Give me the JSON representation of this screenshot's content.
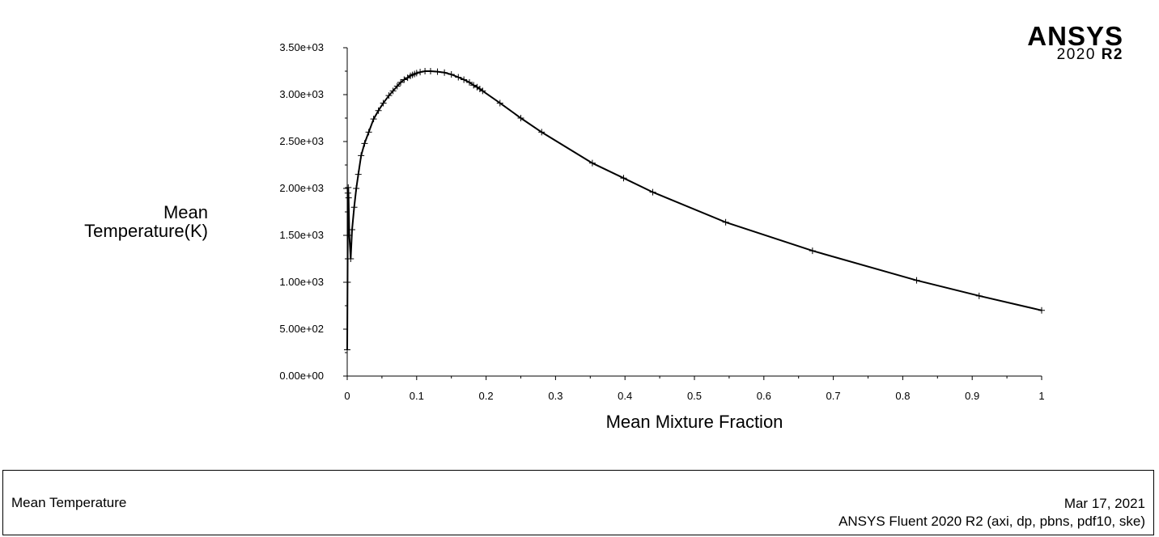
{
  "logo": {
    "brand": "ANSYS",
    "version_year": "2020",
    "version_release": "R2"
  },
  "footer": {
    "left_title": "Mean Temperature",
    "date": "Mar 17, 2021",
    "solver_info": "ANSYS Fluent 2020 R2 (axi, dp, pbns, pdf10, ske)"
  },
  "chart_data": {
    "type": "line",
    "xlabel": "Mean Mixture Fraction",
    "ylabel_lines": [
      "Mean",
      "Temperature(K)"
    ],
    "xlim": [
      0,
      1
    ],
    "ylim": [
      0,
      3500
    ],
    "xticks": [
      0,
      0.1,
      0.2,
      0.3,
      0.4,
      0.5,
      0.6,
      0.7,
      0.8,
      0.9,
      1
    ],
    "xtick_labels": [
      "0",
      "0.1",
      "0.2",
      "0.3",
      "0.4",
      "0.5",
      "0.6",
      "0.7",
      "0.8",
      "0.9",
      "1"
    ],
    "yticks": [
      0,
      500,
      1000,
      1500,
      2000,
      2500,
      3000,
      3500
    ],
    "ytick_labels": [
      "0.00e+00",
      "5.00e+02",
      "1.00e+03",
      "1.50e+03",
      "2.00e+03",
      "2.50e+03",
      "3.00e+03",
      "3.50e+03"
    ],
    "grid": false,
    "series": [
      {
        "marker": "plus",
        "color": "#000000",
        "x": [
          0,
          0.0005,
          0.001,
          0.0015,
          0.002,
          0.003,
          0.005,
          0.007,
          0.01,
          0.013,
          0.016,
          0.02,
          0.025,
          0.031,
          0.038,
          0.045,
          0.052,
          0.06,
          0.066,
          0.072,
          0.077,
          0.082,
          0.087,
          0.091,
          0.094,
          0.097,
          0.1,
          0.105,
          0.112,
          0.12,
          0.13,
          0.14,
          0.15,
          0.16,
          0.168,
          0.176,
          0.182,
          0.187,
          0.191,
          0.195,
          0.22,
          0.25,
          0.28,
          0.353,
          0.398,
          0.44,
          0.545,
          0.67,
          0.82,
          0.91,
          1.0
        ],
        "y": [
          280,
          1000,
          1950,
          2010,
          1900,
          1500,
          1250,
          1560,
          1800,
          2000,
          2150,
          2350,
          2480,
          2600,
          2740,
          2830,
          2910,
          2990,
          3040,
          3090,
          3130,
          3160,
          3180,
          3200,
          3210,
          3220,
          3230,
          3240,
          3250,
          3250,
          3245,
          3235,
          3215,
          3185,
          3160,
          3130,
          3100,
          3080,
          3060,
          3040,
          2910,
          2750,
          2600,
          2270,
          2110,
          1960,
          1640,
          1335,
          1020,
          855,
          700
        ]
      }
    ]
  }
}
